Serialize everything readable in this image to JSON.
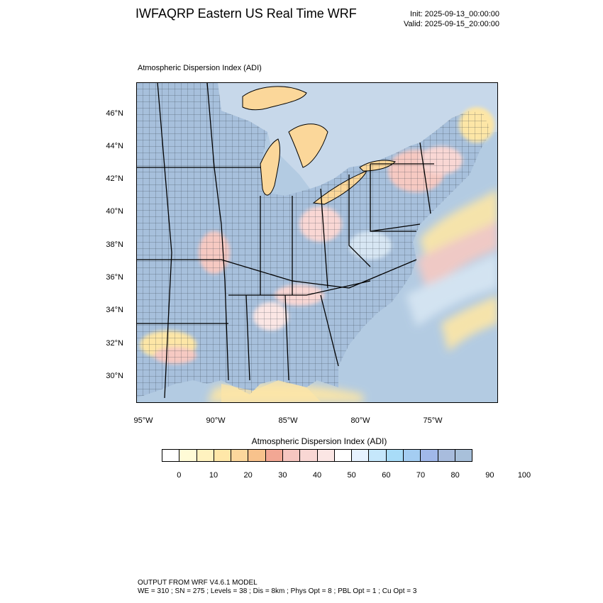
{
  "header": {
    "title": "IWFAQRP Eastern US Real Time WRF",
    "init": "Init: 2025-09-13_00:00:00",
    "valid": "Valid: 2025-09-15_20:00:00"
  },
  "map": {
    "title": "Atmospheric Dispersion Index   (ADI)",
    "lat_labels": [
      "46°N",
      "44°N",
      "42°N",
      "40°N",
      "38°N",
      "36°N",
      "34°N",
      "32°N",
      "30°N"
    ],
    "lon_labels": [
      "95°W",
      "90°W",
      "85°W",
      "80°W",
      "75°W"
    ],
    "colors": {
      "land_high": "#a7c0dc",
      "water_light": "#c4d8ec",
      "low_yellow": "#fde6a6",
      "mid_pink": "#f6c9c2",
      "lake": "#fbd79a"
    }
  },
  "colorbar": {
    "title": "Atmospheric Dispersion Index  (ADI)",
    "colors": [
      "#ffffff",
      "#fffbd6",
      "#fff2bf",
      "#ffe7a8",
      "#fcd79c",
      "#f8c28c",
      "#f2a794",
      "#f6c6c0",
      "#f9d7d4",
      "#fbe6e4",
      "#ffffff",
      "#e6f2ff",
      "#c5e7fb",
      "#a8dcf8",
      "#a4cdf2",
      "#a1b8ea",
      "#a8bcdd",
      "#a8c0da"
    ],
    "ticks": [
      "0",
      "10",
      "20",
      "30",
      "40",
      "50",
      "60",
      "70",
      "80",
      "90",
      "100"
    ]
  },
  "footer": {
    "line1": "OUTPUT FROM WRF V4.6.1 MODEL",
    "line2": "WE = 310 ; SN = 275 ; Levels = 38 ; Dis = 8km ; Phys Opt = 8 ; PBL Opt = 1 ; Cu Opt = 3"
  }
}
